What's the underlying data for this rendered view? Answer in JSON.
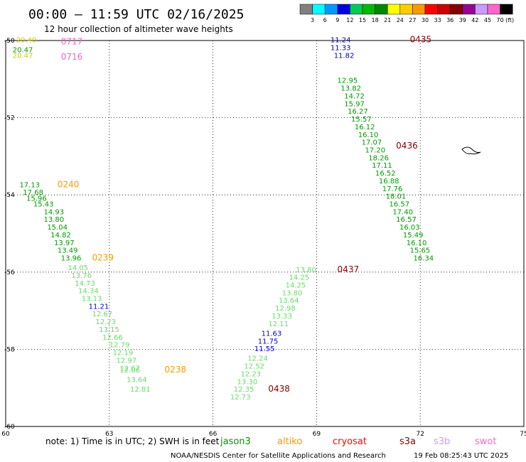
{
  "header": {
    "title": "00:00 – 11:59 UTC 02/16/2025",
    "subtitle": "12 hour collection of altimeter wave heights"
  },
  "colorbar": {
    "labels": [
      "3",
      "6",
      "9",
      "12",
      "15",
      "18",
      "21",
      "24",
      "27",
      "30",
      "33",
      "36",
      "39",
      "42",
      "45",
      "70"
    ],
    "unit": "(ft)",
    "colors": [
      "#808080",
      "#00ffff",
      "#0099ff",
      "#0000dd",
      "#00cc55",
      "#00bb00",
      "#008800",
      "#ffff00",
      "#ffcc00",
      "#ff9900",
      "#ff0000",
      "#cc0000",
      "#880000",
      "#990099",
      "#cc99ff",
      "#ff66cc",
      "#000000"
    ]
  },
  "chart_data": {
    "type": "scatter",
    "xlim": [
      60,
      75
    ],
    "ylim": [
      -60,
      -50
    ],
    "xticks": [
      "60",
      "63",
      "66",
      "69",
      "72",
      "75"
    ],
    "yticks": [
      "-50",
      "-52",
      "-54",
      "-56",
      "-58",
      "-60"
    ],
    "grid": true,
    "series": [
      {
        "color": "#009900",
        "points": [
          [
            60.2,
            -50.3,
            "20.47"
          ]
        ]
      },
      {
        "color": "#cccc00",
        "points": [
          [
            60.3,
            -50.05,
            "20.40"
          ],
          [
            60.2,
            -50.45,
            "20.47"
          ]
        ]
      },
      {
        "color": "#009900",
        "points": [
          [
            60.4,
            -53.8,
            "17.13"
          ],
          [
            60.5,
            -54.0,
            "17.68"
          ],
          [
            60.6,
            -54.15,
            "15.96"
          ],
          [
            60.8,
            -54.3,
            "15.43"
          ],
          [
            61.1,
            -54.5,
            "14.93"
          ],
          [
            61.1,
            -54.7,
            "13.80"
          ],
          [
            61.2,
            -54.9,
            "15.04"
          ],
          [
            61.3,
            -55.1,
            "14.82"
          ],
          [
            61.4,
            -55.3,
            "13.97"
          ],
          [
            61.5,
            -55.5,
            "13.49"
          ],
          [
            61.6,
            -55.7,
            "13.96"
          ]
        ]
      },
      {
        "color": "#66dd66",
        "points": [
          [
            61.8,
            -55.95,
            "14.05"
          ],
          [
            61.9,
            -56.15,
            "13.76"
          ],
          [
            62.0,
            -56.35,
            "14.73"
          ],
          [
            62.1,
            -56.55,
            "14.34"
          ],
          [
            62.2,
            -56.75,
            "13.13"
          ]
        ]
      },
      {
        "color": "#0000cc",
        "points": [
          [
            62.4,
            -56.95,
            "11.21"
          ]
        ]
      },
      {
        "color": "#66dd66",
        "points": [
          [
            62.5,
            -57.15,
            "12.67"
          ],
          [
            62.6,
            -57.35,
            "12.23"
          ],
          [
            62.7,
            -57.55,
            "13.15"
          ],
          [
            62.8,
            -57.75,
            "12.66"
          ],
          [
            63.0,
            -57.95,
            "12.79"
          ],
          [
            63.1,
            -58.15,
            "12.19"
          ],
          [
            63.2,
            -58.35,
            "12.97"
          ],
          [
            63.3,
            -58.55,
            "12.67"
          ],
          [
            63.3,
            -58.6,
            "12.06"
          ],
          [
            63.5,
            -58.85,
            "13.64"
          ],
          [
            63.6,
            -59.1,
            "12.81"
          ]
        ]
      },
      {
        "color": "#009900",
        "points": [
          [
            69.6,
            -51.1,
            "12.95"
          ],
          [
            69.7,
            -51.3,
            "13.82"
          ],
          [
            69.8,
            -51.5,
            "14.72"
          ],
          [
            69.8,
            -51.7,
            "15.97"
          ],
          [
            69.9,
            -51.9,
            "16.27"
          ],
          [
            70.0,
            -52.1,
            "15.57"
          ],
          [
            70.1,
            -52.3,
            "16.12"
          ],
          [
            70.2,
            -52.5,
            "16.10"
          ],
          [
            70.3,
            -52.7,
            "17.07"
          ],
          [
            70.4,
            -52.9,
            "17.20"
          ],
          [
            70.5,
            -53.1,
            "18.26"
          ],
          [
            70.6,
            -53.3,
            "17.11"
          ],
          [
            70.7,
            -53.5,
            "16.52"
          ],
          [
            70.8,
            -53.7,
            "16.88"
          ],
          [
            70.9,
            -53.9,
            "17.76"
          ],
          [
            71.0,
            -54.1,
            "18.01"
          ],
          [
            71.1,
            -54.3,
            "16.57"
          ],
          [
            71.2,
            -54.5,
            "17.40"
          ],
          [
            71.3,
            -54.7,
            "16.57"
          ],
          [
            71.4,
            -54.9,
            "16.03"
          ],
          [
            71.5,
            -55.1,
            "15.49"
          ],
          [
            71.6,
            -55.3,
            "16.10"
          ],
          [
            71.7,
            -55.5,
            "15.65"
          ],
          [
            71.8,
            -55.7,
            "16.34"
          ]
        ]
      },
      {
        "color": "#0000aa",
        "points": [
          [
            69.4,
            -50.05,
            "11.24"
          ],
          [
            69.4,
            -50.25,
            "11.33"
          ],
          [
            69.5,
            -50.45,
            "11.82"
          ]
        ]
      },
      {
        "color": "#66dd66",
        "points": [
          [
            68.4,
            -56.0,
            "13.80"
          ],
          [
            68.2,
            -56.2,
            "14.25"
          ],
          [
            68.1,
            -56.4,
            "14.25"
          ],
          [
            68.0,
            -56.6,
            "13.80"
          ],
          [
            67.9,
            -56.8,
            "13.64"
          ],
          [
            67.8,
            -57.0,
            "12.98"
          ],
          [
            67.7,
            -57.2,
            "13.33"
          ],
          [
            67.6,
            -57.4,
            "12.11"
          ]
        ]
      },
      {
        "color": "#0000cc",
        "points": [
          [
            67.4,
            -57.65,
            "11.63"
          ],
          [
            67.3,
            -57.85,
            "11.75"
          ],
          [
            67.2,
            -58.05,
            "11.55"
          ]
        ]
      },
      {
        "color": "#66dd66",
        "points": [
          [
            67.0,
            -58.3,
            "12.24"
          ],
          [
            66.9,
            -58.5,
            "12.52"
          ],
          [
            66.8,
            -58.7,
            "12.23"
          ],
          [
            66.7,
            -58.9,
            "13.30"
          ],
          [
            66.6,
            -59.1,
            "12.35"
          ],
          [
            66.5,
            -59.3,
            "12.73"
          ]
        ]
      }
    ],
    "pass_labels": [
      {
        "text": "0717",
        "color": "#ee66cc"
      },
      {
        "text": "0716",
        "color": "#ee66cc"
      },
      {
        "text": "0240",
        "color": "#ff9900"
      },
      {
        "text": "0239",
        "color": "#ff9900"
      },
      {
        "text": "0238",
        "color": "#ff9900"
      },
      {
        "text": "0435",
        "color": "#880000"
      },
      {
        "text": "0436",
        "color": "#880000"
      },
      {
        "text": "0437",
        "color": "#880000"
      },
      {
        "text": "0438",
        "color": "#880000"
      }
    ]
  },
  "footer": {
    "note": "note:  1) Time is in UTC; 2) SWH is in feet",
    "legend": [
      {
        "label": "jason3",
        "color": "#009900"
      },
      {
        "label": "altiko",
        "color": "#ff9900"
      },
      {
        "label": "cryosat",
        "color": "#ff0000"
      },
      {
        "label": "s3a",
        "color": "#880000"
      },
      {
        "label": "s3b",
        "color": "#cc99ff"
      },
      {
        "label": "swot",
        "color": "#ff66cc"
      }
    ],
    "credit": "NOAA/NESDIS Center for Satellite Applications and Research",
    "timestamp": "19 Feb 08:25:43 UTC 2025"
  }
}
